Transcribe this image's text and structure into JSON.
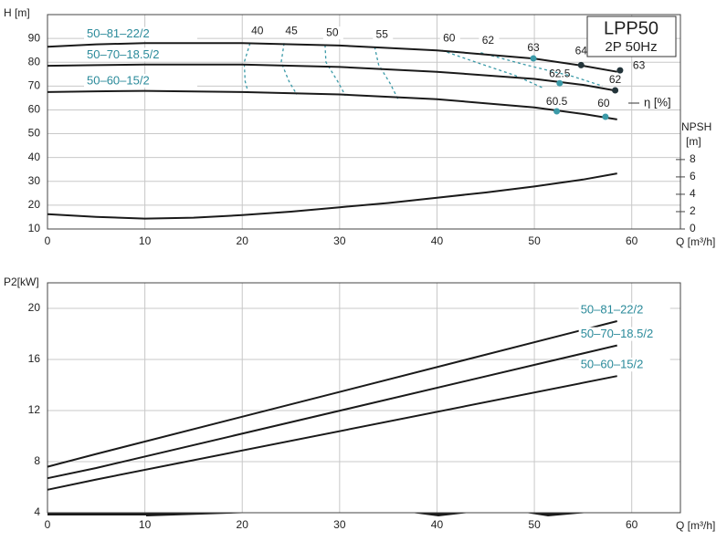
{
  "chart_data": [
    {
      "type": "line",
      "title": "LPP50",
      "subtitle": "2P  50Hz",
      "ylabel": "H [m]",
      "xlabel": "Q [m³/h]",
      "y2label": "NPSH",
      "y2unit": "[m]",
      "xlim": [
        0,
        65
      ],
      "xticks": [
        0,
        10,
        20,
        30,
        40,
        50,
        60
      ],
      "ylim": [
        10,
        100
      ],
      "yticks": [
        10,
        20,
        30,
        40,
        50,
        60,
        70,
        80,
        90
      ],
      "y2lim": [
        0,
        24.7
      ],
      "y2ticks": [
        0,
        2,
        4,
        6,
        8
      ],
      "grid": true,
      "series": [
        {
          "name": "50–81–22/2",
          "color": "#1a1a1a",
          "x": [
            0,
            5,
            10,
            20,
            30,
            40,
            50,
            55,
            58.5
          ],
          "values": [
            86.5,
            87.5,
            88,
            88,
            87,
            85,
            81.5,
            78.5,
            76
          ]
        },
        {
          "name": "50–70–18.5/2",
          "color": "#1a1a1a",
          "x": [
            0,
            5,
            10,
            20,
            30,
            40,
            50,
            55,
            58.5
          ],
          "values": [
            78.5,
            78.8,
            79,
            79,
            78,
            76,
            73,
            70.5,
            68
          ]
        },
        {
          "name": "50–60–15/2",
          "color": "#1a1a1a",
          "x": [
            0,
            5,
            10,
            20,
            30,
            40,
            50,
            55,
            58.5
          ],
          "values": [
            67.5,
            67.8,
            68,
            67.5,
            66.5,
            64.5,
            61,
            58.3,
            56
          ]
        },
        {
          "axis": "y2",
          "color": "#1a1a1a",
          "x": [
            0,
            5,
            10,
            15,
            20,
            25,
            30,
            35,
            40,
            45,
            50,
            55,
            58.5
          ],
          "values": [
            1.7,
            1.4,
            1.2,
            1.3,
            1.6,
            2.0,
            2.5,
            3.0,
            3.6,
            4.2,
            4.9,
            5.7,
            6.4
          ]
        }
      ],
      "efficiency": {
        "label": "η [%]",
        "color": "#3b9aa8",
        "contours": [
          {
            "name": "40",
            "x": [
              20.8,
              20.2,
              20.3,
              20.6
            ],
            "values": [
              88,
              80,
              72,
              67.5
            ]
          },
          {
            "name": "45",
            "x": [
              24.3,
              24.0,
              24.8,
              25.6
            ],
            "values": [
              88,
              80,
              72,
              66.5
            ]
          },
          {
            "name": "50",
            "x": [
              28.5,
              28.6,
              29.8,
              30.6
            ],
            "values": [
              87.3,
              80,
              72,
              66
            ]
          },
          {
            "name": "55",
            "x": [
              33.6,
              34.0,
              35.2,
              36.0
            ],
            "values": [
              86.5,
              79,
              71,
              64.5
            ]
          },
          {
            "name": "60",
            "x": [
              40.5,
              44,
              48,
              51
            ],
            "values": [
              85,
              80,
              74.5,
              69
            ]
          },
          {
            "name": "62",
            "x": [
              44.5,
              49,
              54,
              57
            ],
            "values": [
              84,
              79,
              74,
              70
            ]
          }
        ],
        "points": [
          {
            "label": "63",
            "x": 49.9,
            "value": 81.6,
            "color": "#3b9aa8"
          },
          {
            "label": "64",
            "x": 54.8,
            "value": 78.8,
            "color": "#23343a"
          },
          {
            "label": "63",
            "x": 58.8,
            "value": 76.6,
            "color": "#23343a"
          },
          {
            "label": "62.5",
            "x": 52.6,
            "value": 71.2,
            "color": "#3b9aa8"
          },
          {
            "label": "62",
            "x": 58.3,
            "value": 68.2,
            "color": "#23343a"
          },
          {
            "label": "60.5",
            "x": 52.3,
            "value": 59.4,
            "color": "#3b9aa8"
          },
          {
            "label": "60",
            "x": 57.3,
            "value": 57.1,
            "color": "#3b9aa8"
          }
        ]
      }
    },
    {
      "type": "line",
      "ylabel": "P2[kW]",
      "xlabel": "Q [m³/h]",
      "xlim": [
        0,
        65
      ],
      "xticks": [
        0,
        10,
        20,
        30,
        40,
        50,
        60
      ],
      "ylim": [
        4,
        22
      ],
      "yticks": [
        4,
        8,
        12,
        16,
        20
      ],
      "grid": true,
      "series": [
        {
          "name": "50–81–22/2",
          "color": "#1a1a1a",
          "x": [
            0,
            5,
            58.5
          ],
          "values": [
            7.6,
            8.6,
            19.0
          ]
        },
        {
          "name": "50–70–18.5/2",
          "color": "#1a1a1a",
          "x": [
            0,
            5,
            58.5
          ],
          "values": [
            6.7,
            7.5,
            17.1
          ]
        },
        {
          "name": "50–60–15/2",
          "color": "#1a1a1a",
          "x": [
            0,
            5,
            58.5
          ],
          "values": [
            5.8,
            6.6,
            14.7
          ]
        }
      ]
    }
  ]
}
